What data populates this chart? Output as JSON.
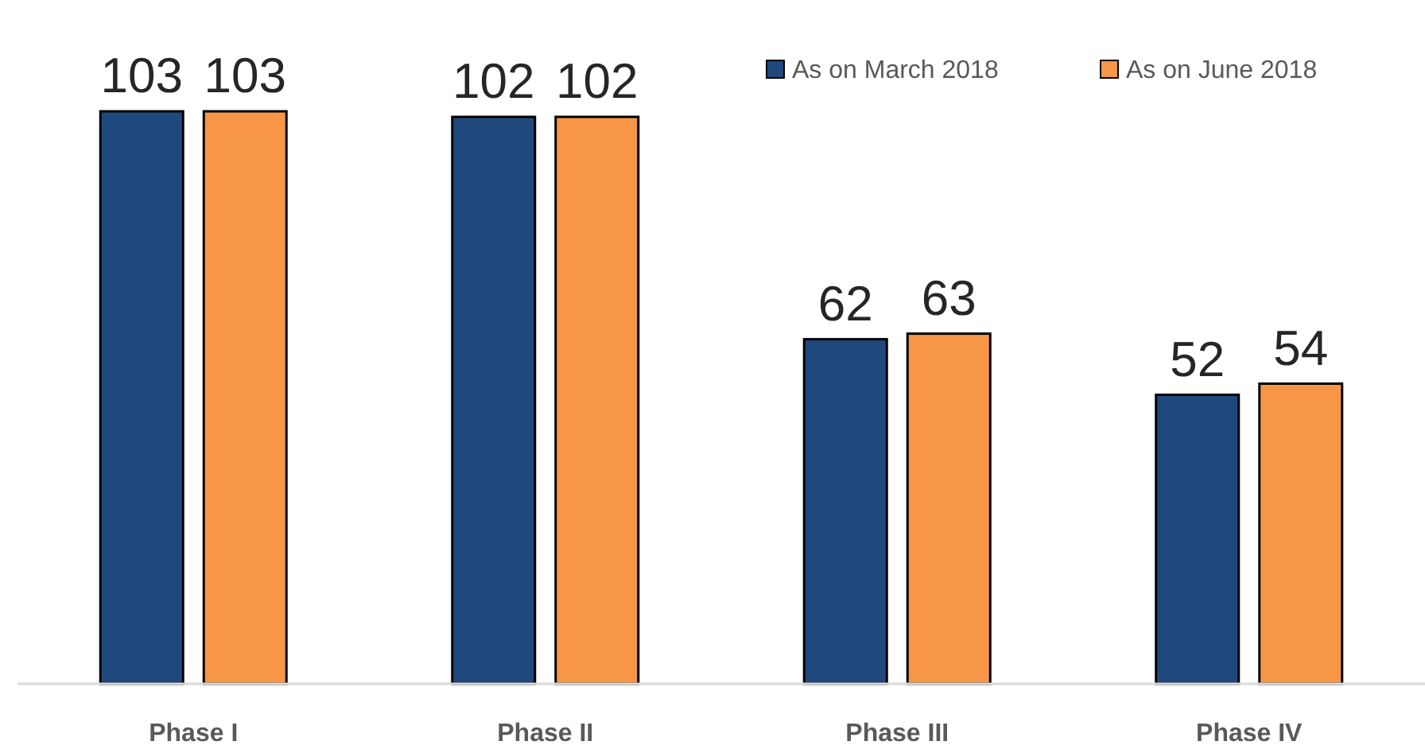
{
  "chart_data": {
    "type": "bar",
    "categories": [
      "Phase I",
      "Phase II",
      "Phase III",
      "Phase IV"
    ],
    "series": [
      {
        "name": "As on March 2018",
        "color": "#1f497d",
        "values": [
          103,
          102,
          62,
          52
        ]
      },
      {
        "name": "As on June 2018",
        "color": "#f79646",
        "values": [
          103,
          102,
          63,
          54
        ]
      }
    ],
    "data_labels": true,
    "legend": "top right"
  }
}
